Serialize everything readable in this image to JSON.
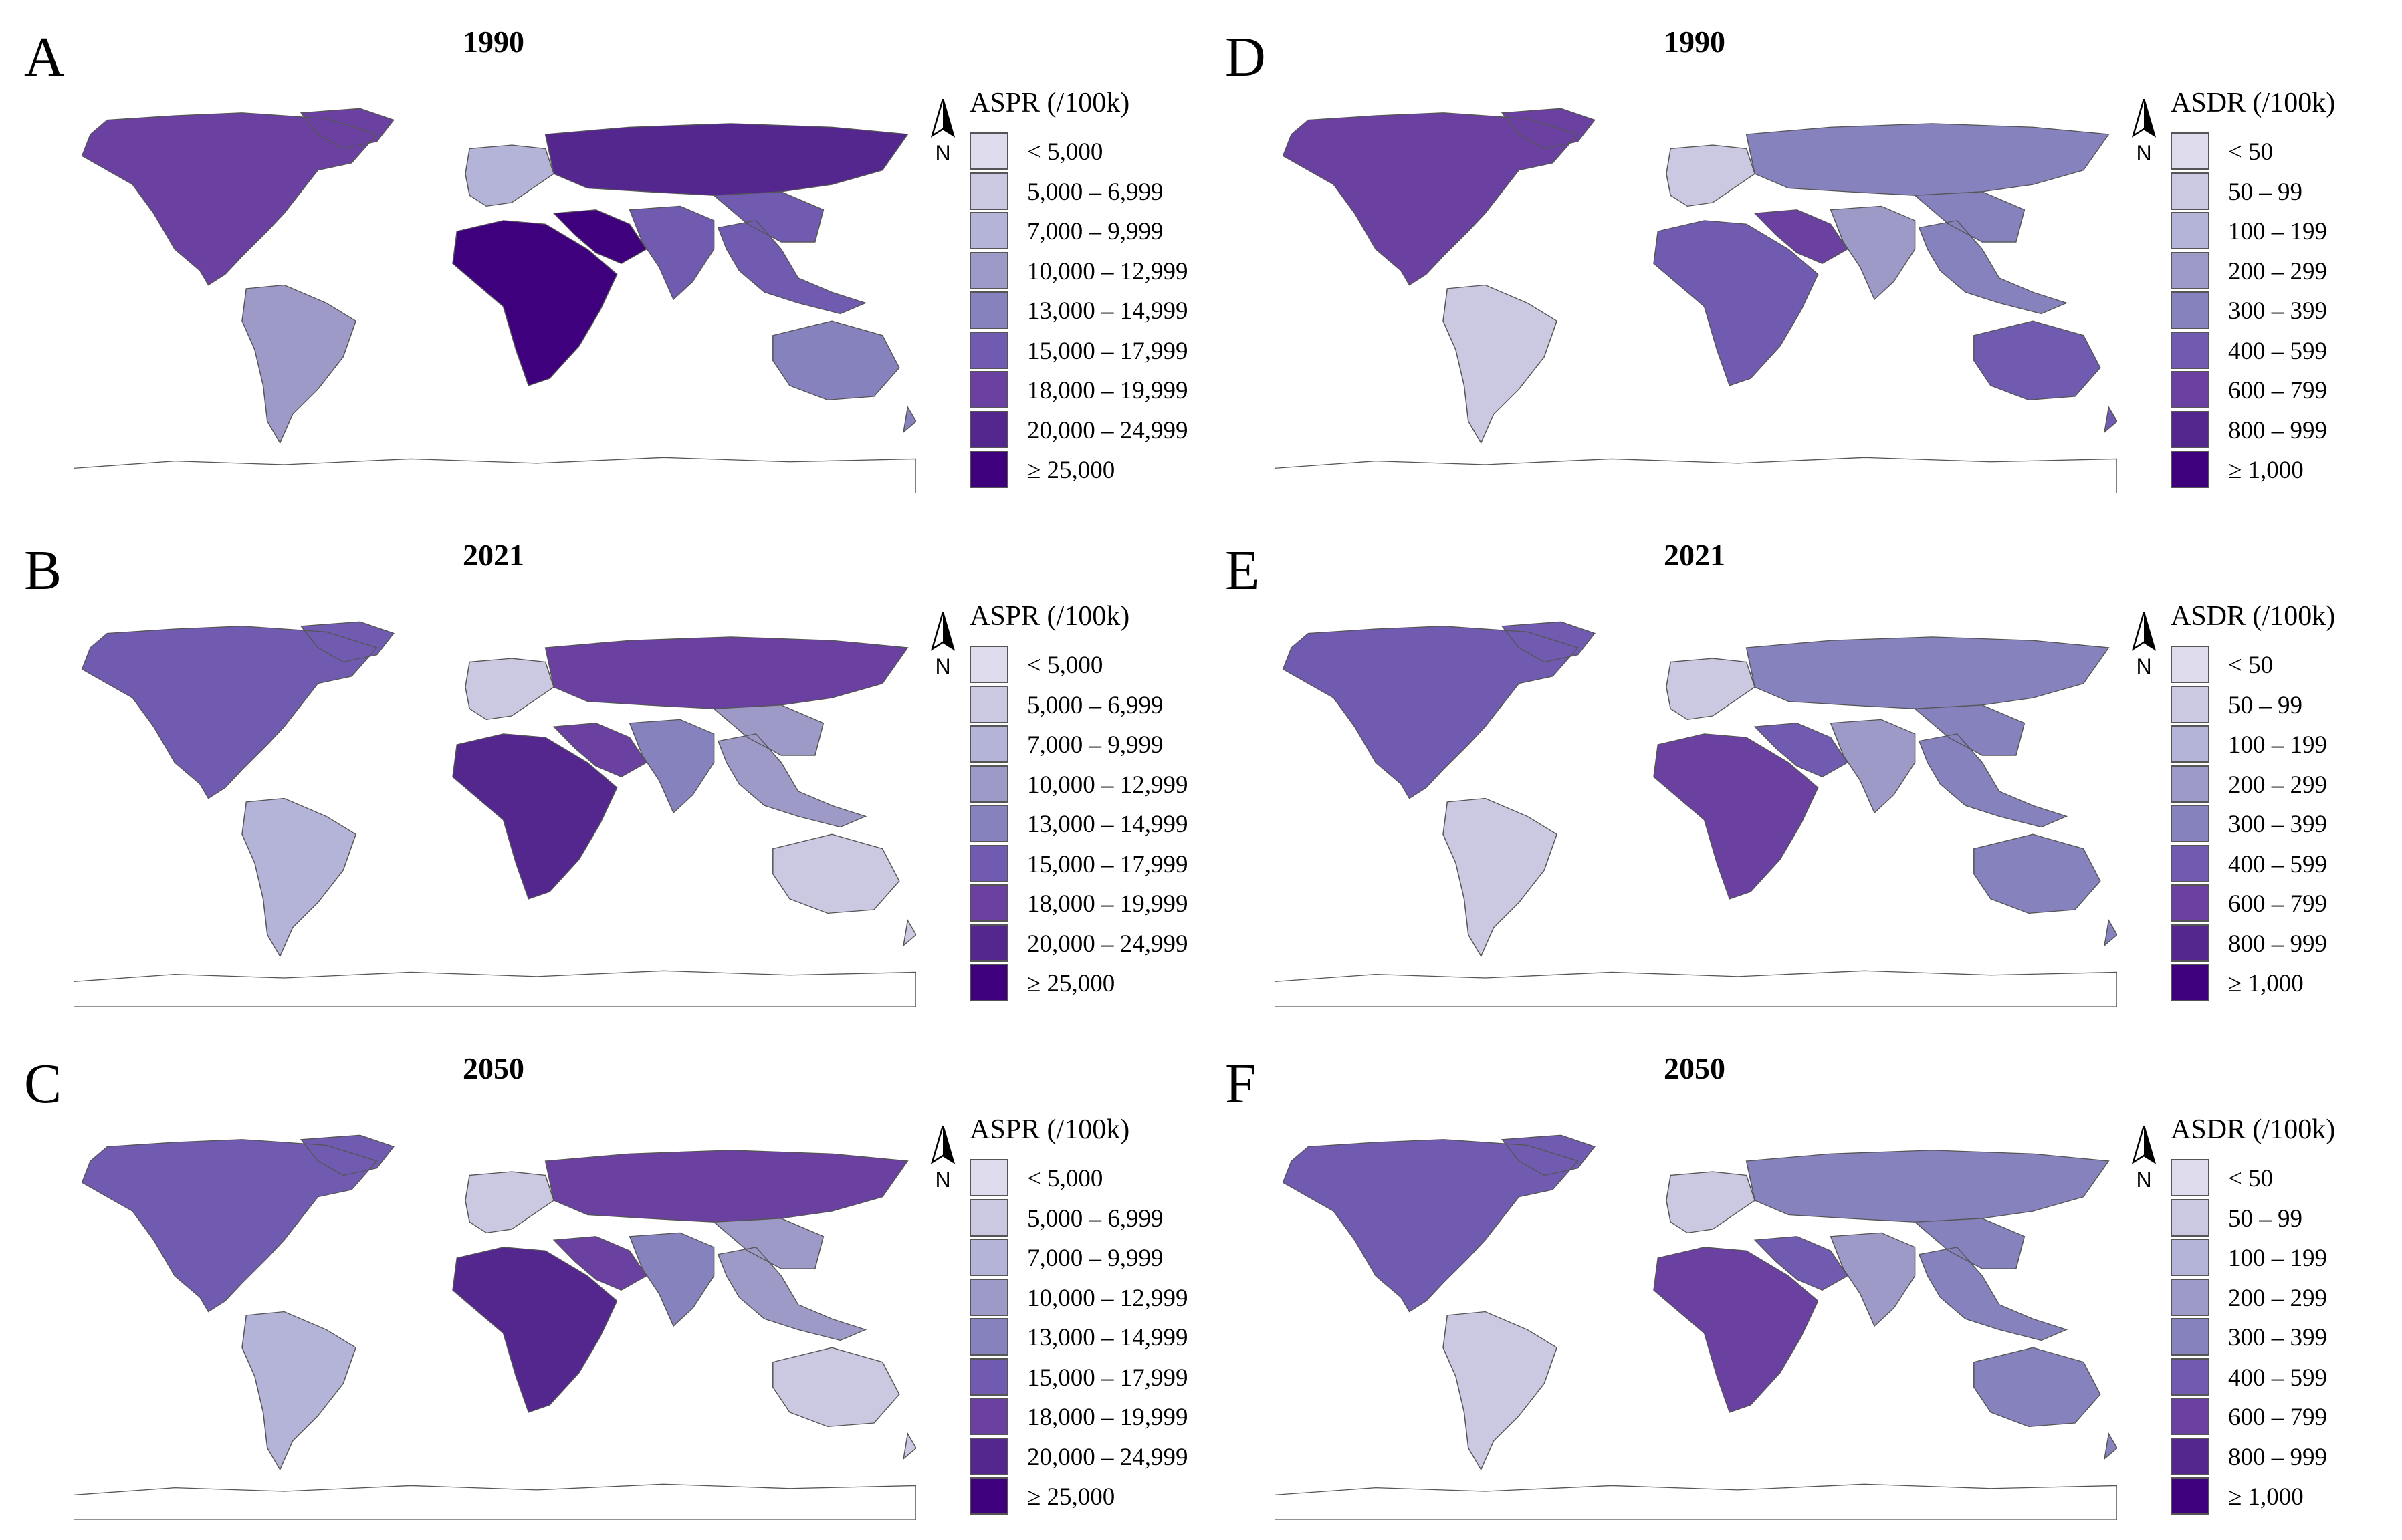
{
  "panels": [
    {
      "label": "A",
      "year": "1990",
      "legend_title": "ASPR (/100k)",
      "metric": "aspr",
      "shades": [
        6,
        3,
        2,
        7,
        8,
        8,
        5,
        5,
        4
      ]
    },
    {
      "label": "D",
      "year": "1990",
      "legend_title": "ASDR (/100k)",
      "metric": "asdr",
      "shades": [
        6,
        1,
        1,
        4,
        5,
        6,
        3,
        4,
        5
      ]
    },
    {
      "label": "B",
      "year": "2021",
      "legend_title": "ASPR (/100k)",
      "metric": "aspr",
      "shades": [
        5,
        2,
        1,
        6,
        7,
        6,
        4,
        3,
        1
      ]
    },
    {
      "label": "E",
      "year": "2021",
      "legend_title": "ASDR (/100k)",
      "metric": "asdr",
      "shades": [
        5,
        1,
        1,
        4,
        6,
        5,
        3,
        4,
        4
      ]
    },
    {
      "label": "C",
      "year": "2050",
      "legend_title": "ASPR (/100k)",
      "metric": "aspr",
      "shades": [
        5,
        2,
        1,
        6,
        7,
        6,
        4,
        3,
        1
      ]
    },
    {
      "label": "F",
      "year": "2050",
      "legend_title": "ASDR (/100k)",
      "metric": "asdr",
      "shades": [
        5,
        1,
        1,
        4,
        6,
        5,
        3,
        4,
        4
      ]
    }
  ],
  "legends": {
    "aspr": [
      "< 5,000",
      "5,000 – 6,999",
      "7,000 – 9,999",
      "10,000 – 12,999",
      "13,000 – 14,999",
      "15,000 – 17,999",
      "18,000 – 19,999",
      "20,000 – 24,999",
      "≥ 25,000"
    ],
    "asdr": [
      "< 50",
      "50 – 99",
      "100 – 199",
      "200 – 299",
      "300 – 399",
      "400 – 599",
      "600 – 799",
      "800 – 999",
      "≥ 1,000"
    ]
  },
  "colors": [
    "#dedcec",
    "#cbc9e2",
    "#b4b3d8",
    "#9e9ac8",
    "#8582be",
    "#705bb0",
    "#6a40a0",
    "#54278f",
    "#3f007d"
  ],
  "north_arrow_label": "N",
  "region_order": [
    "north-america",
    "south-america",
    "europe",
    "russia",
    "africa",
    "middle-east",
    "south-asia",
    "southeast-asia",
    "oceania"
  ]
}
